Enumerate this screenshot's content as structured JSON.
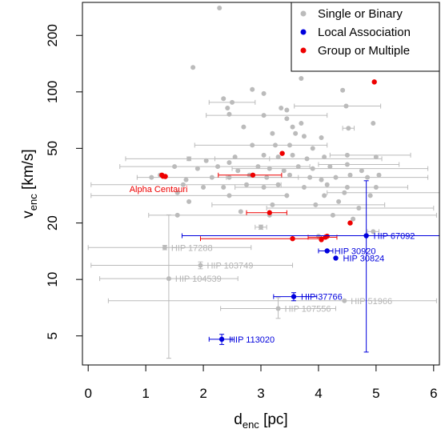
{
  "chart_data": {
    "type": "scatter",
    "xlabel": {
      "main": "d",
      "sub": "enc",
      "unit": " [pc]"
    },
    "ylabel": {
      "main": "v",
      "sub": "enc",
      "unit": " [km/s]"
    },
    "xlim": [
      -0.1,
      6.1
    ],
    "ylim": [
      3.5,
      300
    ],
    "yscale": "log",
    "x_ticks": [
      0,
      1,
      2,
      3,
      4,
      5,
      6
    ],
    "y_ticks": [
      5,
      10,
      20,
      50,
      100,
      200
    ],
    "grid": false,
    "legend_position": "top-right",
    "series": [
      {
        "name": "Single or Binary",
        "color": "#bbbbbb",
        "points": [
          {
            "x": 2.28,
            "y": 280
          },
          {
            "x": 1.82,
            "y": 135
          },
          {
            "x": 2.85,
            "y": 103
          },
          {
            "x": 3.05,
            "y": 98
          },
          {
            "x": 3.7,
            "y": 118
          },
          {
            "x": 4.42,
            "y": 102
          },
          {
            "x": 4.48,
            "y": 84
          },
          {
            "x": 4.95,
            "y": 68
          },
          {
            "x": 2.35,
            "y": 92
          },
          {
            "x": 2.5,
            "y": 88
          },
          {
            "x": 2.42,
            "y": 82
          },
          {
            "x": 2.45,
            "y": 76
          },
          {
            "x": 3.35,
            "y": 82
          },
          {
            "x": 3.45,
            "y": 80
          },
          {
            "x": 3.05,
            "y": 75
          },
          {
            "x": 3.45,
            "y": 72
          },
          {
            "x": 3.7,
            "y": 68
          },
          {
            "x": 4.52,
            "y": 64
          },
          {
            "x": 2.7,
            "y": 65
          },
          {
            "x": 3.2,
            "y": 60
          },
          {
            "x": 3.55,
            "y": 65
          },
          {
            "x": 3.6,
            "y": 60
          },
          {
            "x": 3.75,
            "y": 58
          },
          {
            "x": 4.05,
            "y": 57
          },
          {
            "x": 2.85,
            "y": 52
          },
          {
            "x": 3.25,
            "y": 52
          },
          {
            "x": 3.5,
            "y": 52
          },
          {
            "x": 3.9,
            "y": 50
          },
          {
            "x": 1.75,
            "y": 44
          },
          {
            "x": 2.05,
            "y": 43
          },
          {
            "x": 2.45,
            "y": 42
          },
          {
            "x": 2.55,
            "y": 45
          },
          {
            "x": 3.05,
            "y": 46
          },
          {
            "x": 3.3,
            "y": 45
          },
          {
            "x": 3.55,
            "y": 46
          },
          {
            "x": 3.8,
            "y": 44
          },
          {
            "x": 4.1,
            "y": 45
          },
          {
            "x": 4.5,
            "y": 46
          },
          {
            "x": 5.0,
            "y": 45
          },
          {
            "x": 1.5,
            "y": 40
          },
          {
            "x": 1.9,
            "y": 39
          },
          {
            "x": 2.25,
            "y": 40
          },
          {
            "x": 2.6,
            "y": 38
          },
          {
            "x": 2.95,
            "y": 40
          },
          {
            "x": 3.15,
            "y": 39
          },
          {
            "x": 3.4,
            "y": 38
          },
          {
            "x": 3.65,
            "y": 40
          },
          {
            "x": 3.9,
            "y": 39
          },
          {
            "x": 4.2,
            "y": 40
          },
          {
            "x": 4.5,
            "y": 41
          },
          {
            "x": 4.75,
            "y": 38
          },
          {
            "x": 1.1,
            "y": 35
          },
          {
            "x": 1.25,
            "y": 36
          },
          {
            "x": 1.7,
            "y": 34
          },
          {
            "x": 2.15,
            "y": 35
          },
          {
            "x": 2.45,
            "y": 35
          },
          {
            "x": 2.8,
            "y": 36
          },
          {
            "x": 3.1,
            "y": 35
          },
          {
            "x": 3.5,
            "y": 36
          },
          {
            "x": 3.85,
            "y": 35
          },
          {
            "x": 4.05,
            "y": 34
          },
          {
            "x": 4.3,
            "y": 35
          },
          {
            "x": 4.55,
            "y": 36
          },
          {
            "x": 4.85,
            "y": 35
          },
          {
            "x": 5.05,
            "y": 36
          },
          {
            "x": 1.65,
            "y": 32
          },
          {
            "x": 2.0,
            "y": 31
          },
          {
            "x": 2.35,
            "y": 31
          },
          {
            "x": 2.75,
            "y": 32
          },
          {
            "x": 3.05,
            "y": 31
          },
          {
            "x": 3.3,
            "y": 32
          },
          {
            "x": 3.75,
            "y": 31
          },
          {
            "x": 4.15,
            "y": 32
          },
          {
            "x": 4.5,
            "y": 31
          },
          {
            "x": 5.0,
            "y": 31
          },
          {
            "x": 1.55,
            "y": 29
          },
          {
            "x": 2.45,
            "y": 28
          },
          {
            "x": 3.45,
            "y": 28
          },
          {
            "x": 4.1,
            "y": 28
          },
          {
            "x": 4.45,
            "y": 29
          },
          {
            "x": 4.9,
            "y": 28
          },
          {
            "x": 1.75,
            "y": 26
          },
          {
            "x": 3.2,
            "y": 25
          },
          {
            "x": 3.95,
            "y": 25
          },
          {
            "x": 4.35,
            "y": 26
          },
          {
            "x": 4.7,
            "y": 24
          },
          {
            "x": 2.65,
            "y": 23
          },
          {
            "x": 3.15,
            "y": 22
          },
          {
            "x": 4.25,
            "y": 22
          },
          {
            "x": 4.6,
            "y": 21
          },
          {
            "x": 1.55,
            "y": 22
          },
          {
            "x": 3.0,
            "y": 19
          },
          {
            "x": 4.95,
            "y": 18
          },
          {
            "x": 4.0,
            "y": 17
          }
        ],
        "error_points": [
          {
            "x": 2.5,
            "y": 88,
            "xerr": [
              0.4,
              0.4
            ]
          },
          {
            "x": 3.05,
            "y": 75,
            "xerr": [
              1.0,
              1.1
            ]
          },
          {
            "x": 4.48,
            "y": 84,
            "xerr": [
              0.9,
              0.6
            ]
          },
          {
            "x": 2.85,
            "y": 52,
            "xerr": [
              1.0,
              1.3
            ]
          },
          {
            "x": 1.75,
            "y": 44,
            "xerr": [
              1.1,
              1.4
            ],
            "yerr": [
              1,
              1
            ]
          },
          {
            "x": 3.8,
            "y": 44,
            "xerr": [
              1.6,
              1.3
            ]
          },
          {
            "x": 4.5,
            "y": 46,
            "xerr": [
              0.3,
              1.1
            ]
          },
          {
            "x": 2.25,
            "y": 40,
            "xerr": [
              1.7,
              1.6
            ]
          },
          {
            "x": 3.9,
            "y": 39,
            "xerr": [
              1.4,
              2.0
            ]
          },
          {
            "x": 4.5,
            "y": 41,
            "xerr": [
              0.5,
              0.9
            ]
          },
          {
            "x": 2.15,
            "y": 35,
            "xerr": [
              1.3,
              1.5
            ]
          },
          {
            "x": 4.3,
            "y": 35,
            "xerr": [
              1.9,
              1.6
            ]
          },
          {
            "x": 1.65,
            "y": 32,
            "xerr": [
              1.6,
              1.7
            ]
          },
          {
            "x": 3.75,
            "y": 31,
            "xerr": [
              1.2,
              1.8
            ]
          },
          {
            "x": 4.45,
            "y": 29,
            "xerr": [
              0.3,
              1.7
            ]
          },
          {
            "x": 2.45,
            "y": 28,
            "xerr": [
              2.4,
              1.0
            ]
          },
          {
            "x": 3.95,
            "y": 25,
            "xerr": [
              1.8,
              1.2
            ]
          },
          {
            "x": 4.7,
            "y": 24,
            "xerr": [
              1.6,
              1.3
            ]
          },
          {
            "x": 4.25,
            "y": 22,
            "xerr": [
              3.2,
              1.8
            ]
          },
          {
            "x": 3.0,
            "y": 19,
            "xerr": [
              0.1,
              0.1
            ],
            "yerr": [
              0.5,
              0.5
            ]
          },
          {
            "x": 4.95,
            "y": 18,
            "xerr": [
              0.1,
              0.1
            ]
          },
          {
            "x": 4.52,
            "y": 64,
            "xerr": [
              0.1,
              0.1
            ]
          }
        ]
      },
      {
        "name": "Local Association",
        "color": "#0000dd",
        "points": [
          {
            "x": 4.83,
            "y": 17.1,
            "label": "HIP 67092",
            "xerr": [
              3.2,
              1.3
            ],
            "yerr": [
              13.0,
              16.5
            ]
          },
          {
            "x": 4.15,
            "y": 14.2,
            "label": "HIP 30920",
            "xerr": [
              0.15,
              0.1
            ]
          },
          {
            "x": 4.3,
            "y": 13.0,
            "label": "HIP 30824"
          },
          {
            "x": 3.57,
            "y": 8.1,
            "label": "HIP 37766",
            "xerr": [
              0.35,
              0.4
            ],
            "yerr": [
              0.4,
              0.4
            ]
          },
          {
            "x": 2.32,
            "y": 4.8,
            "label": "HIP 113020",
            "xerr": [
              0.22,
              0.18
            ],
            "yerr": [
              0.3,
              0.3
            ]
          }
        ]
      },
      {
        "name": "Group or Multiple",
        "color": "#ee0000",
        "points": [
          {
            "x": 4.97,
            "y": 113
          },
          {
            "x": 3.37,
            "y": 47
          },
          {
            "x": 2.86,
            "y": 36,
            "xerr": [
              0.6,
              0.5
            ]
          },
          {
            "x": 1.28,
            "y": 36
          },
          {
            "x": 1.34,
            "y": 35.4
          },
          {
            "x": 1.3,
            "y": 35.5
          },
          {
            "x": 3.15,
            "y": 22.7,
            "xerr": [
              0.4,
              0.3
            ]
          },
          {
            "x": 4.55,
            "y": 20
          },
          {
            "x": 3.55,
            "y": 16.5,
            "xerr": [
              1.6,
              0.5
            ]
          },
          {
            "x": 4.12,
            "y": 16.8,
            "xerr": [
              0.3,
              0.2
            ]
          },
          {
            "x": 4.05,
            "y": 16.3
          },
          {
            "x": 4.15,
            "y": 17
          }
        ]
      }
    ],
    "grey_annotations": [
      {
        "x": 1.33,
        "y": 14.8,
        "label": "HIP 17288",
        "xerr": [
          1.33,
          1.5
        ],
        "yerr": [
          0.4,
          0.4
        ]
      },
      {
        "x": 1.95,
        "y": 11.9,
        "label": "HIP 103749",
        "xerr": [
          1.9,
          1.6
        ],
        "yerr": [
          0.5,
          0.5
        ]
      },
      {
        "x": 1.4,
        "y": 10.1,
        "label": "HIP 104539",
        "xerr": [
          1.2,
          1.2
        ],
        "yerr": [
          6.3,
          12
        ]
      },
      {
        "x": 4.45,
        "y": 7.7,
        "label": "HIP 51966",
        "xerr": [
          4.1,
          1.6
        ]
      },
      {
        "x": 3.3,
        "y": 7.0,
        "label": "HIP 107556",
        "xerr": [
          1.0,
          1.0
        ],
        "yerr": [
          0.8,
          1.0
        ]
      }
    ],
    "text_annotations": [
      {
        "x": 1.3,
        "y": 35.5,
        "label": "Alpha Centauri",
        "color": "#ee0000"
      }
    ]
  }
}
